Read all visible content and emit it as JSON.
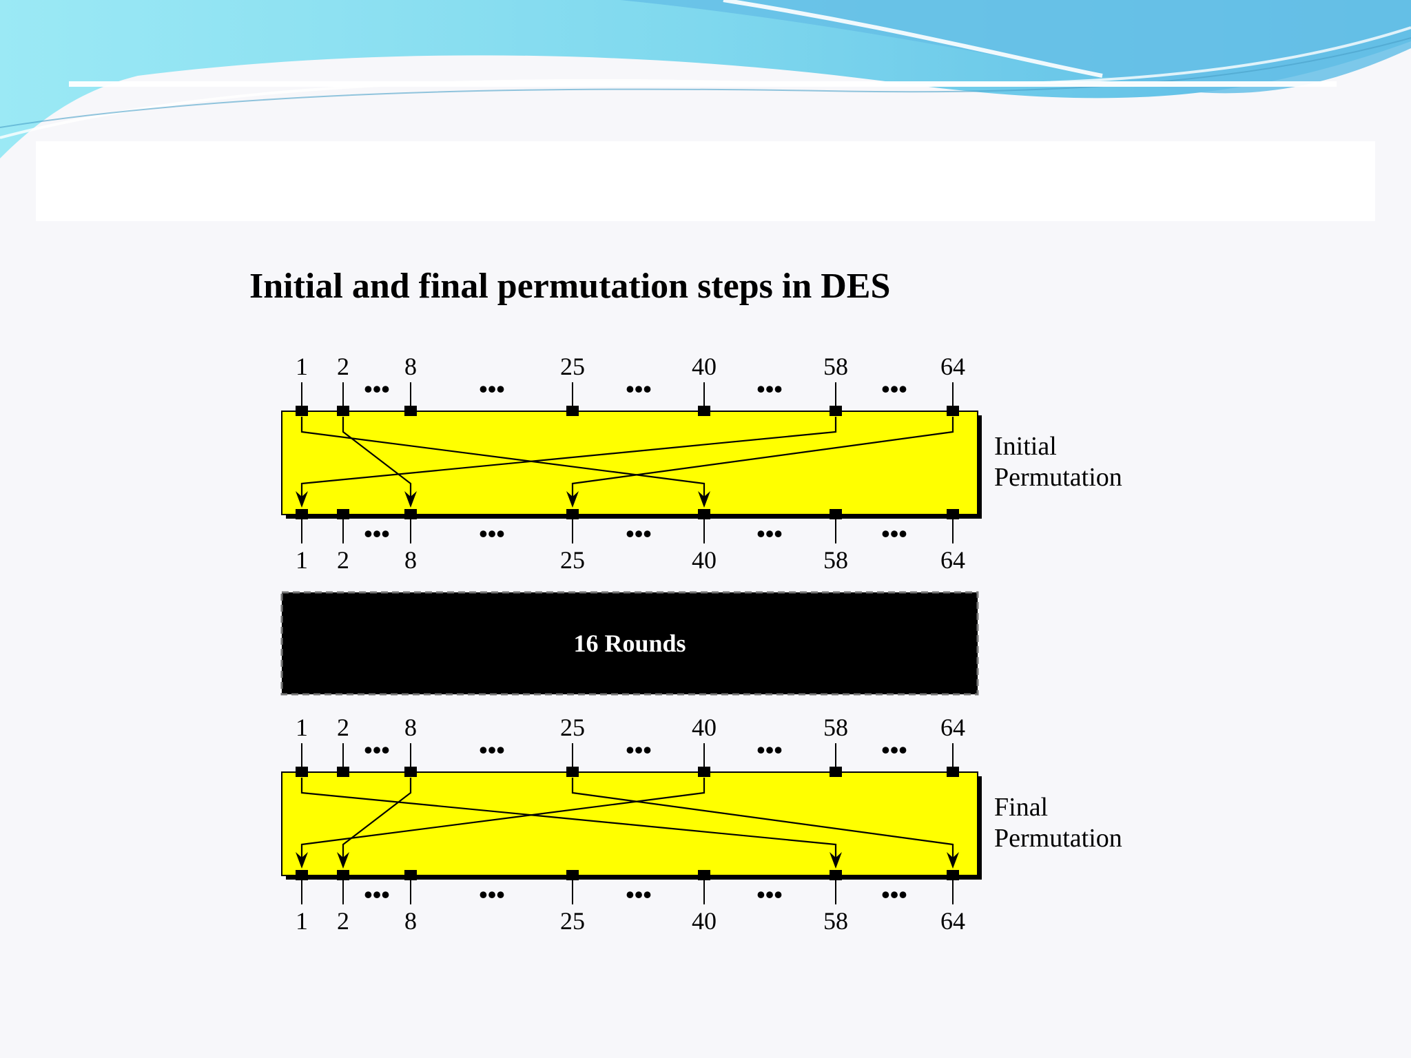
{
  "title": "Initial and final permutation steps in DES",
  "colors": {
    "box_fill": "#ffff00",
    "rounds_fill": "#000000",
    "wave_light": "#8fe6f2",
    "wave_dark": "#5fb9e2"
  },
  "ellipsis": "•••",
  "initial_permutation": {
    "label_lines": [
      "Initial",
      "Permutation"
    ],
    "input_labels": [
      "1",
      "2",
      "8",
      "25",
      "40",
      "58",
      "64"
    ],
    "output_labels": [
      "1",
      "2",
      "8",
      "25",
      "40",
      "58",
      "64"
    ],
    "mapping": [
      {
        "from": "58",
        "to": "1"
      },
      {
        "from": "2",
        "to": "8"
      },
      {
        "from": "64",
        "to": "25"
      },
      {
        "from": "1",
        "to": "40"
      }
    ]
  },
  "rounds": {
    "label": "16 Rounds"
  },
  "final_permutation": {
    "label_lines": [
      "Final",
      "Permutation"
    ],
    "input_labels": [
      "1",
      "2",
      "8",
      "25",
      "40",
      "58",
      "64"
    ],
    "output_labels": [
      "1",
      "2",
      "8",
      "25",
      "40",
      "58",
      "64"
    ],
    "mapping": [
      {
        "from": "40",
        "to": "1"
      },
      {
        "from": "8",
        "to": "2"
      },
      {
        "from": "1",
        "to": "58"
      },
      {
        "from": "25",
        "to": "64"
      }
    ]
  }
}
